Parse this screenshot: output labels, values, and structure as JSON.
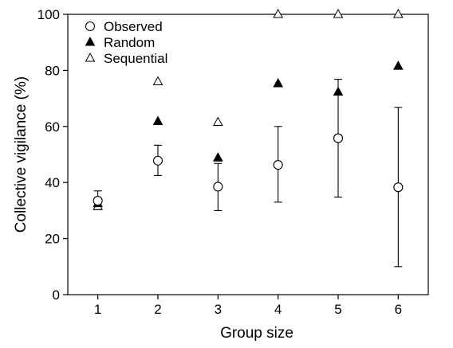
{
  "chart_data": {
    "type": "scatter",
    "title": "",
    "xlabel": "Group size",
    "ylabel": "Collective vigilance (%)",
    "categories": [
      "1",
      "2",
      "3",
      "4",
      "5",
      "6"
    ],
    "x": [
      1,
      2,
      3,
      4,
      5,
      6
    ],
    "xlim": [
      0.5,
      6.5
    ],
    "ylim": [
      0,
      100
    ],
    "yticks": [
      "0",
      "20",
      "40",
      "60",
      "80",
      "100"
    ],
    "grid": false,
    "legend_position": "top-left",
    "series": [
      {
        "name": "Observed",
        "marker": "open-circle",
        "color": "#000000",
        "values": [
          33.5,
          47.8,
          38.5,
          46.3,
          55.8,
          38.3
        ],
        "error_low": [
          30.3,
          42.5,
          30,
          33,
          34.8,
          10
        ],
        "error_high": [
          37,
          53.3,
          46.8,
          60,
          76.8,
          66.8
        ]
      },
      {
        "name": "Random",
        "marker": "filled-triangle",
        "color": "#000000",
        "values": [
          32.5,
          61.8,
          48.8,
          75.3,
          72.3,
          81.5
        ]
      },
      {
        "name": "Sequential",
        "marker": "open-triangle",
        "color": "#000000",
        "values": [
          31.5,
          76,
          61.5,
          100,
          100,
          100
        ]
      }
    ]
  }
}
